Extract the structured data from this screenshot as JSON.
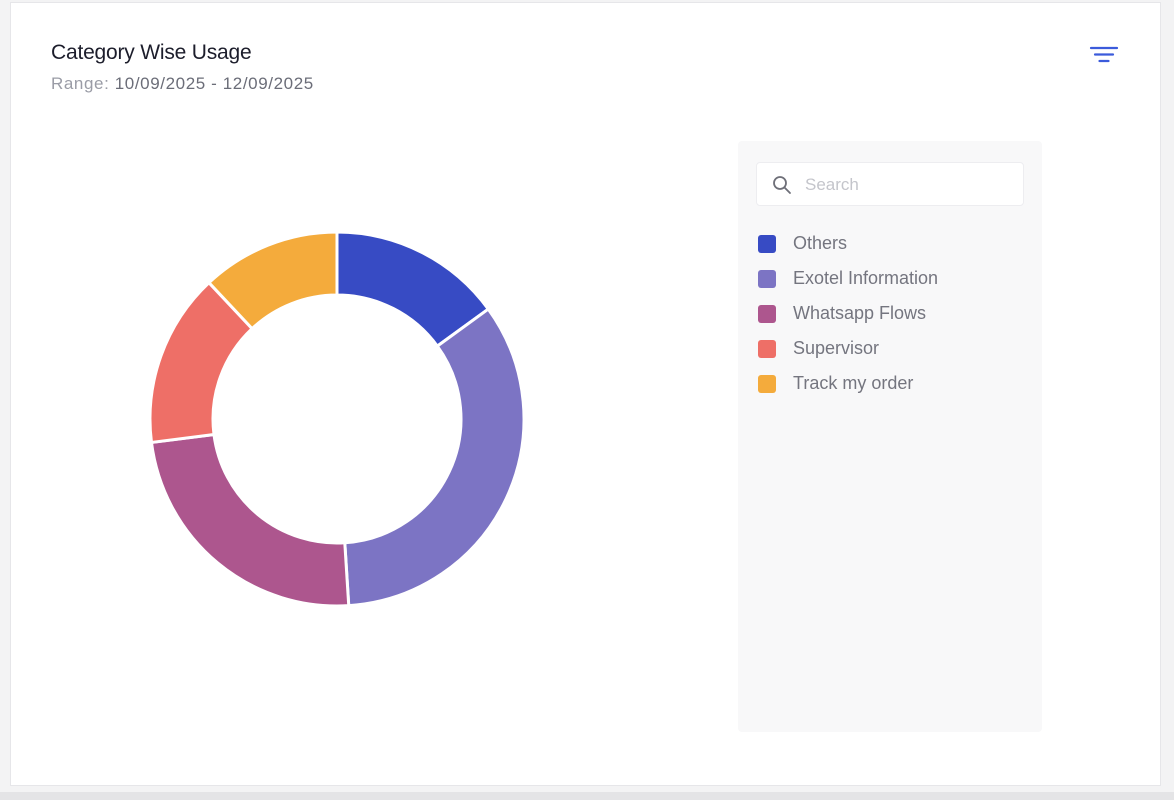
{
  "header": {
    "title": "Category Wise Usage",
    "range_label": "Range:",
    "range_value": "10/09/2025 - 12/09/2025"
  },
  "toolbar": {
    "filter_icon": "filter-lines-icon",
    "accent_color": "#3b5bdb"
  },
  "legend": {
    "search_placeholder": "Search",
    "search_value": "",
    "search_icon": "search-icon"
  },
  "chart_data": {
    "type": "pie",
    "variant": "donut",
    "title": "Category Wise Usage",
    "legend_position": "right",
    "labels": [
      "Others",
      "Exotel Information",
      "Whatsapp Flows",
      "Supervisor",
      "Track my order"
    ],
    "values": [
      15,
      34,
      24,
      15,
      12
    ],
    "colors": [
      "#374bc4",
      "#7c74c4",
      "#ad568e",
      "#ee6f67",
      "#f4ab3c"
    ]
  }
}
